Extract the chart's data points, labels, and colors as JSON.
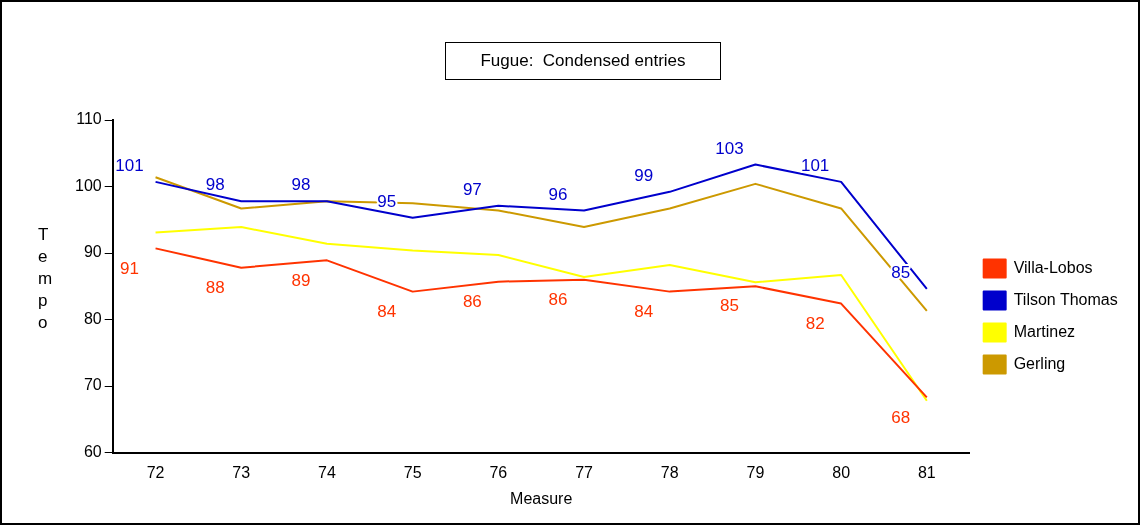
{
  "chart_data": {
    "type": "line",
    "title": "Fugue:  Condensed entries",
    "xlabel": "Measure",
    "ylabel": "Tempo",
    "categories": [
      "72",
      "73",
      "74",
      "75",
      "76",
      "77",
      "78",
      "79",
      "80",
      "81"
    ],
    "ylim": [
      60,
      110
    ],
    "yticks": [
      60,
      70,
      80,
      90,
      100,
      110
    ],
    "grid": false,
    "legend": "right",
    "marker": "none",
    "series": [
      {
        "name": "Villa-Lobos",
        "color": "#ff3300",
        "values": [
          90.7,
          87.8,
          88.9,
          84.2,
          85.7,
          86,
          84.2,
          85,
          82.4,
          68.3
        ],
        "value_labels": [
          "91",
          "88",
          "89",
          "84",
          "86",
          "86",
          "84",
          "85",
          "82",
          "68"
        ]
      },
      {
        "name": "Tilson Thomas",
        "color": "#0000cc",
        "values": [
          100.7,
          97.8,
          97.8,
          95.3,
          97.1,
          96.4,
          99.2,
          103.3,
          100.7,
          84.6
        ],
        "value_labels": [
          "101",
          "98",
          "98",
          "95",
          "97",
          "96",
          "99",
          "103",
          "101",
          "85"
        ]
      },
      {
        "name": "Martinez",
        "color": "#ffff00",
        "values": [
          93.1,
          93.9,
          91.4,
          90.4,
          89.7,
          86.4,
          88.2,
          85.6,
          86.7,
          67.8
        ]
      },
      {
        "name": "Gerling",
        "color": "#cc9900",
        "values": [
          101.4,
          96.7,
          97.8,
          97.5,
          96.4,
          93.9,
          96.7,
          100.4,
          96.7,
          81.3
        ]
      }
    ]
  }
}
